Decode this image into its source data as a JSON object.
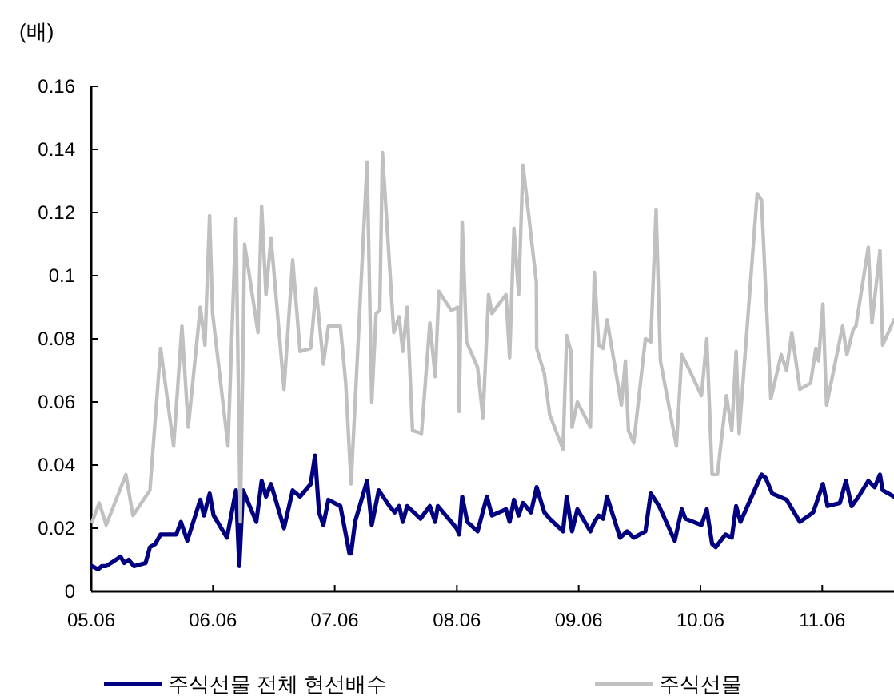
{
  "chart_data": {
    "type": "line",
    "ylabel": "(배)",
    "xlim": [
      "2005-06-01",
      "2012-01-02"
    ],
    "ylim": [
      0,
      0.16
    ],
    "xticks": [
      {
        "value": "2005-06",
        "label": "05.06"
      },
      {
        "value": "2006-06",
        "label": "06.06"
      },
      {
        "value": "2007-06",
        "label": "07.06"
      },
      {
        "value": "2008-06",
        "label": "08.06"
      },
      {
        "value": "2009-06",
        "label": "09.06"
      },
      {
        "value": "2010-06",
        "label": "10.06"
      },
      {
        "value": "2011-06",
        "label": "11.06"
      }
    ],
    "yticks": [
      0,
      0.02,
      0.04,
      0.06,
      0.08,
      0.1,
      0.12,
      0.14,
      0.16
    ],
    "grid": false,
    "legend": "bottom",
    "marker": "none",
    "line_style": "solid",
    "series": [
      {
        "name": "주식선물 전체 현선배수",
        "color": "#000080",
        "x": [
          "2005-06-04",
          "2005-06-21",
          "2005-07-03",
          "2005-07-16",
          "2005-08-28",
          "2005-09-08",
          "2005-09-21",
          "2005-10-07",
          "2005-11-11",
          "2005-11-24",
          "2005-12-10",
          "2005-12-26",
          "2006-02-11",
          "2006-02-25",
          "2006-03-16",
          "2006-04-24",
          "2006-05-05",
          "2006-05-22",
          "2006-06-03",
          "2006-07-13",
          "2006-08-09",
          "2006-08-19",
          "2006-08-30",
          "2006-10-09",
          "2006-10-25",
          "2006-11-07",
          "2006-11-22",
          "2006-12-31",
          "2007-01-26",
          "2007-02-17",
          "2007-03-21",
          "2007-04-03",
          "2007-04-15",
          "2007-04-28",
          "2007-05-13",
          "2007-06-18",
          "2007-07-15",
          "2007-07-20",
          "2007-08-01",
          "2007-09-06",
          "2007-09-20",
          "2007-10-11",
          "2007-11-12",
          "2007-11-28",
          "2007-12-11",
          "2007-12-22",
          "2008-01-04",
          "2008-02-13",
          "2008-03-12",
          "2008-03-28",
          "2008-04-05",
          "2008-05-31",
          "2008-06-08",
          "2008-06-17",
          "2008-07-02",
          "2008-08-02",
          "2008-08-30",
          "2008-09-14",
          "2008-10-26",
          "2008-11-06",
          "2008-11-19",
          "2008-12-03",
          "2008-12-16",
          "2009-01-09",
          "2009-01-26",
          "2009-02-18",
          "2009-03-06",
          "2009-04-15",
          "2009-04-26",
          "2009-05-12",
          "2009-05-28",
          "2009-07-06",
          "2009-07-18",
          "2009-07-31",
          "2009-08-13",
          "2009-08-25",
          "2009-10-03",
          "2009-10-24",
          "2009-11-13",
          "2009-12-18",
          "2010-01-03",
          "2010-01-28",
          "2010-03-16",
          "2010-04-06",
          "2010-04-17",
          "2010-06-04",
          "2010-06-20",
          "2010-07-06",
          "2010-07-17",
          "2010-08-15",
          "2010-09-03",
          "2010-09-16",
          "2010-09-29",
          "2010-12-01",
          "2010-12-13",
          "2011-01-02",
          "2011-02-14",
          "2011-03-26",
          "2011-05-05",
          "2011-06-03",
          "2011-06-17",
          "2011-07-24",
          "2011-08-11",
          "2011-08-28",
          "2011-09-18",
          "2011-10-17",
          "2011-11-05",
          "2011-11-21",
          "2011-11-29",
          "2012-01-02"
        ],
        "values": [
          0.008,
          0.007,
          0.008,
          0.008,
          0.011,
          0.009,
          0.01,
          0.008,
          0.009,
          0.014,
          0.015,
          0.018,
          0.018,
          0.022,
          0.016,
          0.029,
          0.024,
          0.031,
          0.024,
          0.017,
          0.032,
          0.008,
          0.032,
          0.022,
          0.035,
          0.03,
          0.034,
          0.02,
          0.032,
          0.03,
          0.034,
          0.043,
          0.025,
          0.021,
          0.029,
          0.027,
          0.012,
          0.012,
          0.022,
          0.035,
          0.021,
          0.032,
          0.027,
          0.025,
          0.027,
          0.022,
          0.027,
          0.023,
          0.027,
          0.022,
          0.027,
          0.02,
          0.018,
          0.03,
          0.022,
          0.019,
          0.03,
          0.024,
          0.026,
          0.022,
          0.029,
          0.024,
          0.028,
          0.025,
          0.033,
          0.025,
          0.023,
          0.019,
          0.03,
          0.019,
          0.026,
          0.019,
          0.022,
          0.024,
          0.023,
          0.03,
          0.017,
          0.019,
          0.017,
          0.019,
          0.031,
          0.027,
          0.016,
          0.026,
          0.023,
          0.021,
          0.026,
          0.015,
          0.014,
          0.018,
          0.017,
          0.027,
          0.022,
          0.037,
          0.036,
          0.031,
          0.029,
          0.022,
          0.025,
          0.034,
          0.027,
          0.028,
          0.035,
          0.027,
          0.03,
          0.035,
          0.033,
          0.037,
          0.032,
          0.03
        ]
      },
      {
        "name": "주식선물",
        "color": "#c0c0c0",
        "x": [
          "2005-06-04",
          "2005-06-25",
          "2005-07-16",
          "2005-09-13",
          "2005-10-04",
          "2005-11-24",
          "2005-12-26",
          "2006-02-03",
          "2006-02-28",
          "2006-03-19",
          "2006-04-24",
          "2006-05-08",
          "2006-05-22",
          "2006-05-31",
          "2006-07-16",
          "2006-08-09",
          "2006-08-22",
          "2006-09-04",
          "2006-10-14",
          "2006-10-25",
          "2006-11-07",
          "2006-11-22",
          "2006-12-31",
          "2007-01-26",
          "2007-02-17",
          "2007-03-21",
          "2007-04-06",
          "2007-04-28",
          "2007-05-13",
          "2007-06-18",
          "2007-07-04",
          "2007-07-20",
          "2007-09-06",
          "2007-09-20",
          "2007-10-03",
          "2007-10-14",
          "2007-10-22",
          "2007-11-25",
          "2007-12-11",
          "2007-12-22",
          "2008-01-04",
          "2008-01-20",
          "2008-02-16",
          "2008-03-12",
          "2008-03-28",
          "2008-04-08",
          "2008-05-15",
          "2008-06-04",
          "2008-06-08",
          "2008-06-17",
          "2008-06-30",
          "2008-08-02",
          "2008-08-18",
          "2008-09-04",
          "2008-09-14",
          "2008-10-26",
          "2008-11-06",
          "2008-11-19",
          "2008-12-03",
          "2008-12-16",
          "2009-01-25",
          "2009-01-26",
          "2009-02-18",
          "2009-03-06",
          "2009-04-15",
          "2009-04-26",
          "2009-05-09",
          "2009-05-12",
          "2009-05-28",
          "2009-07-06",
          "2009-07-18",
          "2009-07-31",
          "2009-08-13",
          "2009-08-25",
          "2009-10-07",
          "2009-10-19",
          "2009-10-28",
          "2009-11-13",
          "2009-12-18",
          "2010-01-03",
          "2010-01-19",
          "2010-02-01",
          "2010-03-21",
          "2010-04-06",
          "2010-04-25",
          "2010-06-04",
          "2010-06-20",
          "2010-07-06",
          "2010-07-22",
          "2010-08-18",
          "2010-09-03",
          "2010-09-16",
          "2010-09-25",
          "2010-11-18",
          "2010-12-01",
          "2010-12-29",
          "2011-01-29",
          "2011-02-14",
          "2011-03-02",
          "2011-03-26",
          "2011-04-27",
          "2011-05-13",
          "2011-05-21",
          "2011-06-03",
          "2011-06-14",
          "2011-08-01",
          "2011-08-14",
          "2011-09-02",
          "2011-09-10",
          "2011-10-17",
          "2011-10-28",
          "2011-11-21",
          "2011-11-29",
          "2012-01-02"
        ],
        "values": [
          0.022,
          0.028,
          0.021,
          0.037,
          0.024,
          0.032,
          0.077,
          0.046,
          0.084,
          0.052,
          0.09,
          0.078,
          0.119,
          0.088,
          0.046,
          0.118,
          0.022,
          0.11,
          0.082,
          0.122,
          0.094,
          0.112,
          0.064,
          0.105,
          0.076,
          0.077,
          0.096,
          0.072,
          0.084,
          0.084,
          0.066,
          0.034,
          0.136,
          0.06,
          0.088,
          0.089,
          0.139,
          0.082,
          0.087,
          0.076,
          0.09,
          0.051,
          0.05,
          0.085,
          0.068,
          0.095,
          0.089,
          0.09,
          0.057,
          0.117,
          0.079,
          0.071,
          0.055,
          0.094,
          0.088,
          0.094,
          0.074,
          0.115,
          0.094,
          0.135,
          0.098,
          0.077,
          0.069,
          0.056,
          0.045,
          0.081,
          0.076,
          0.052,
          0.06,
          0.052,
          0.101,
          0.078,
          0.077,
          0.086,
          0.059,
          0.073,
          0.051,
          0.047,
          0.08,
          0.079,
          0.121,
          0.073,
          0.046,
          0.075,
          0.071,
          0.062,
          0.08,
          0.037,
          0.037,
          0.062,
          0.051,
          0.076,
          0.05,
          0.126,
          0.124,
          0.061,
          0.075,
          0.07,
          0.082,
          0.064,
          0.066,
          0.077,
          0.073,
          0.091,
          0.059,
          0.084,
          0.075,
          0.083,
          0.084,
          0.109,
          0.085,
          0.108,
          0.078,
          0.086
        ]
      }
    ]
  }
}
